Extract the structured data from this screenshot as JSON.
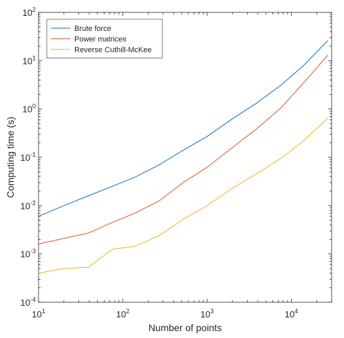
{
  "chart_data": {
    "type": "line",
    "xlabel": "Number of points",
    "ylabel": "Computing time (s)",
    "xscale": "log",
    "yscale": "log",
    "xlim": [
      10,
      30000
    ],
    "ylim": [
      0.0001,
      100
    ],
    "grid": false,
    "legend_location": "top-left",
    "x_ticks": [
      {
        "base": "10",
        "exp": "1"
      },
      {
        "base": "10",
        "exp": "2"
      },
      {
        "base": "10",
        "exp": "3"
      },
      {
        "base": "10",
        "exp": "4"
      }
    ],
    "y_ticks": [
      {
        "base": "10",
        "exp": "-4"
      },
      {
        "base": "10",
        "exp": "-3"
      },
      {
        "base": "10",
        "exp": "-2"
      },
      {
        "base": "10",
        "exp": "-1"
      },
      {
        "base": "10",
        "exp": "0"
      },
      {
        "base": "10",
        "exp": "1"
      },
      {
        "base": "10",
        "exp": "2"
      }
    ],
    "series": [
      {
        "name": "Brute force",
        "color": "#0072BD",
        "x": [
          10,
          20,
          39,
          75,
          140,
          270,
          520,
          1000,
          2000,
          3800,
          7500,
          14000,
          27000
        ],
        "y": [
          0.006,
          0.01,
          0.016,
          0.025,
          0.039,
          0.07,
          0.14,
          0.27,
          0.63,
          1.3,
          3.1,
          8,
          26
        ]
      },
      {
        "name": "Power matrices",
        "color": "#D95319",
        "x": [
          10,
          20,
          39,
          75,
          140,
          270,
          520,
          1000,
          2000,
          3800,
          7500,
          14000,
          27000
        ],
        "y": [
          0.0016,
          0.0021,
          0.0027,
          0.0045,
          0.007,
          0.0125,
          0.03,
          0.062,
          0.16,
          0.38,
          1.05,
          3.5,
          13
        ]
      },
      {
        "name": "Reverse Cuthill-McKee",
        "color": "#EDB120",
        "x": [
          10,
          20,
          39,
          75,
          140,
          270,
          520,
          1000,
          2000,
          3800,
          7500,
          14000,
          27000
        ],
        "y": [
          0.0004,
          0.0005,
          0.00053,
          0.00125,
          0.00145,
          0.0024,
          0.0052,
          0.01,
          0.023,
          0.045,
          0.095,
          0.22,
          0.65
        ]
      }
    ]
  }
}
